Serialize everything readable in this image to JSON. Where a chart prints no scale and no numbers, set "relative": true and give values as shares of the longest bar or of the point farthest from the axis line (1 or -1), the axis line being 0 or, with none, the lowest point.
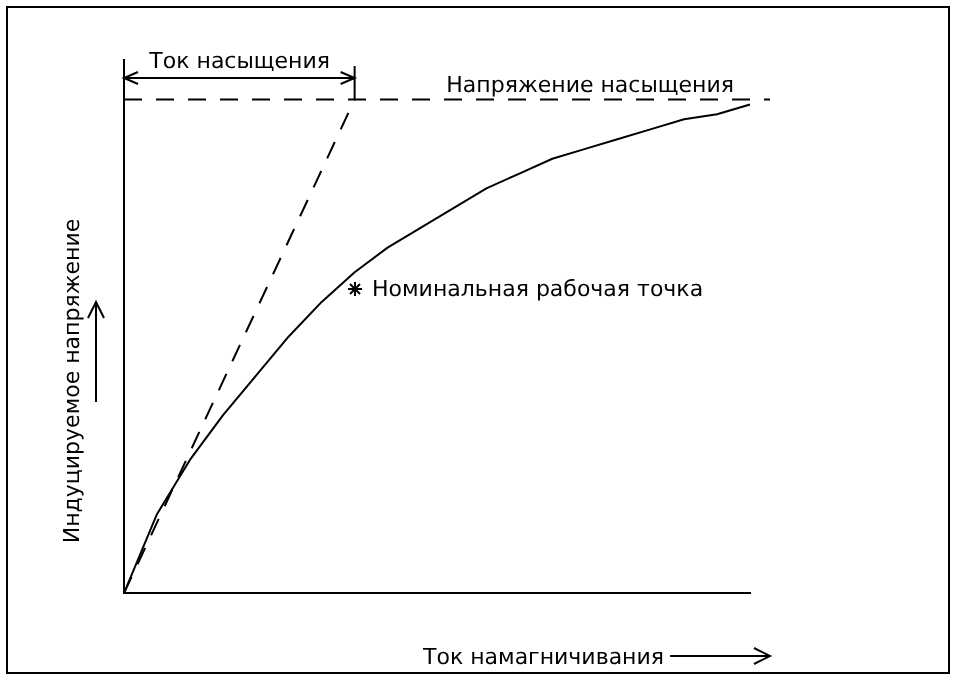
{
  "chart_data": {
    "type": "line",
    "relative": true,
    "xlabel": "Ток намагничивания",
    "ylabel": "Индуцируемое напряжение",
    "grid": false,
    "legend": false,
    "marker": "none",
    "categories": [
      null,
      null,
      null,
      null,
      null,
      null,
      null,
      null,
      null,
      null,
      null,
      null,
      null,
      null,
      null,
      null,
      null,
      null,
      null,
      null
    ],
    "series": [
      {
        "color": "#000000",
        "line_style": "solid",
        "values": [
          0,
          0.16,
          0.27,
          0.36,
          0.44,
          0.52,
          0.59,
          0.65,
          0.7,
          0.74,
          0.78,
          0.82,
          0.85,
          0.88,
          0.9,
          0.92,
          0.94,
          0.96,
          0.97,
          0.99
        ]
      },
      {
        "color": "#000000",
        "line_style": "dashed",
        "values": [
          0,
          null,
          null,
          null,
          null,
          null,
          null,
          1,
          null,
          null,
          null,
          null,
          null,
          null,
          null,
          null,
          null,
          null,
          null,
          null
        ]
      }
    ],
    "ref_lines": [
      {
        "axis": "y",
        "value": 1,
        "label": "Напряжение насыщения",
        "line_style": "dashed",
        "color": "#000000"
      }
    ],
    "annotations": [
      "Номинальная рабочая точка",
      "Ток насыщения"
    ]
  }
}
